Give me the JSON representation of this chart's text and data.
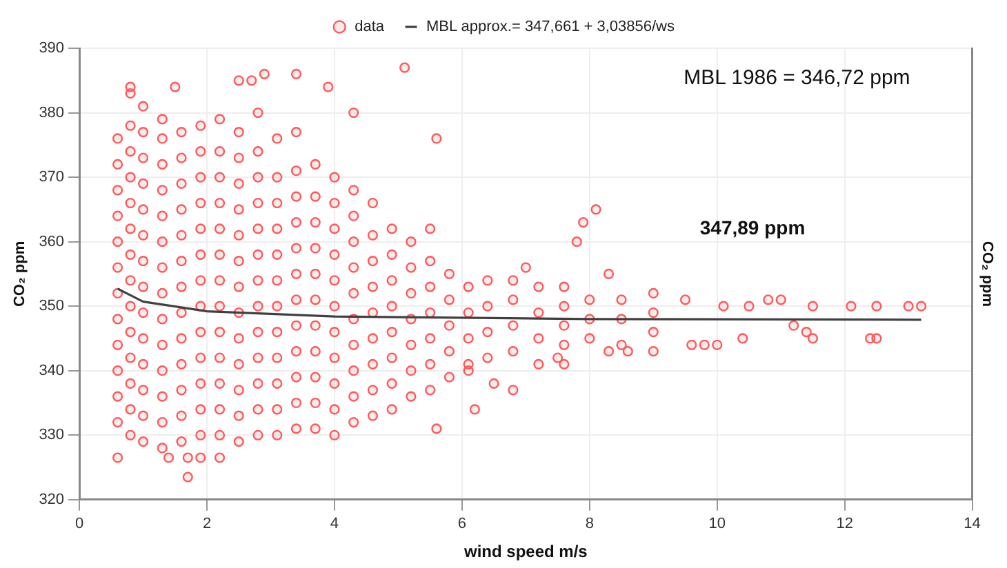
{
  "chart_data": {
    "type": "scatter",
    "xlabel": "wind speed m/s",
    "ylabel": "CO₂ ppm",
    "y2label": "CO₂ ppm",
    "xlim": [
      0,
      14
    ],
    "xticks": [
      0,
      2,
      4,
      6,
      8,
      10,
      12,
      14
    ],
    "ylim": [
      320,
      390
    ],
    "yticks": [
      320,
      330,
      340,
      350,
      360,
      370,
      380,
      390
    ],
    "grid": true,
    "legend": "top",
    "marker": "circle",
    "annotations": [
      "MBL 1986 = 346,72 ppm",
      "347,89 ppm"
    ],
    "series": [
      {
        "name": "data",
        "color": "#ff5a5a",
        "x": [
          0.6,
          0.6,
          0.6,
          0.6,
          0.6,
          0.6,
          0.6,
          0.6,
          0.6,
          0.6,
          0.6,
          0.6,
          0.8,
          0.8,
          0.8,
          0.8,
          0.8,
          0.8,
          0.8,
          0.8,
          0.8,
          0.8,
          0.8,
          0.8,
          0.8,
          0.8,
          1.0,
          1.0,
          1.0,
          1.0,
          1.0,
          1.0,
          1.0,
          1.0,
          1.0,
          1.0,
          1.0,
          1.0,
          1.0,
          1.0,
          1.3,
          1.3,
          1.3,
          1.3,
          1.3,
          1.3,
          1.3,
          1.3,
          1.3,
          1.3,
          1.3,
          1.3,
          1.3,
          1.3,
          1.6,
          1.6,
          1.6,
          1.6,
          1.6,
          1.6,
          1.6,
          1.6,
          1.6,
          1.6,
          1.6,
          1.6,
          1.6,
          1.9,
          1.9,
          1.9,
          1.9,
          1.9,
          1.9,
          1.9,
          1.9,
          1.9,
          1.9,
          1.9,
          1.9,
          1.9,
          2.2,
          2.2,
          2.2,
          2.2,
          2.2,
          2.2,
          2.2,
          2.2,
          2.2,
          2.2,
          2.2,
          2.2,
          2.2,
          2.5,
          2.5,
          2.5,
          2.5,
          2.5,
          2.5,
          2.5,
          2.5,
          2.5,
          2.5,
          2.5,
          2.5,
          2.5,
          2.8,
          2.8,
          2.8,
          2.8,
          2.8,
          2.8,
          2.8,
          2.8,
          2.8,
          2.8,
          2.8,
          2.8,
          2.8,
          3.1,
          3.1,
          3.1,
          3.1,
          3.1,
          3.1,
          3.1,
          3.1,
          3.1,
          3.1,
          3.1,
          3.1,
          3.4,
          3.4,
          3.4,
          3.4,
          3.4,
          3.4,
          3.4,
          3.4,
          3.4,
          3.4,
          3.4,
          3.4,
          3.7,
          3.7,
          3.7,
          3.7,
          3.7,
          3.7,
          3.7,
          3.7,
          3.7,
          3.7,
          3.7,
          4.0,
          4.0,
          4.0,
          4.0,
          4.0,
          4.0,
          4.0,
          4.0,
          4.0,
          4.0,
          4.0,
          4.3,
          4.3,
          4.3,
          4.3,
          4.3,
          4.3,
          4.3,
          4.3,
          4.3,
          4.3,
          4.6,
          4.6,
          4.6,
          4.6,
          4.6,
          4.6,
          4.6,
          4.6,
          4.6,
          4.9,
          4.9,
          4.9,
          4.9,
          4.9,
          4.9,
          4.9,
          4.9,
          5.2,
          5.2,
          5.2,
          5.2,
          5.2,
          5.2,
          5.2,
          5.5,
          5.5,
          5.5,
          5.5,
          5.5,
          5.5,
          5.5,
          5.8,
          5.8,
          5.8,
          5.8,
          5.8,
          6.1,
          6.1,
          6.1,
          6.1,
          6.4,
          6.4,
          6.4,
          6.4,
          6.8,
          6.8,
          6.8,
          6.8,
          7.2,
          7.2,
          7.2,
          7.2,
          7.6,
          7.6,
          7.6,
          7.6,
          8.0,
          8.0,
          8.0,
          8.5,
          8.5,
          8.5,
          9.0,
          9.0,
          9.0,
          1.7,
          0.6,
          1.4,
          1.7,
          1.9,
          2.2,
          5.1,
          3.4,
          2.9,
          0.8,
          1.5,
          2.5,
          2.7,
          3.9,
          4.3,
          5.6,
          13.2,
          13.0,
          12.5,
          12.1,
          11.5,
          11.0,
          10.8,
          10.5,
          10.1,
          9.5,
          12.5,
          12.4,
          11.5,
          11.4,
          11.2,
          10.4,
          10.0,
          9.8,
          9.6,
          9.0,
          8.6,
          8.3,
          7.6,
          7.8,
          8.1,
          7.9,
          7.5,
          6.5,
          6.2,
          5.6,
          6.8,
          6.1,
          7.0,
          8.3
        ],
        "values": [
          332,
          336,
          340,
          344,
          348,
          352,
          356,
          360,
          364,
          368,
          372,
          376,
          330,
          334,
          338,
          342,
          346,
          350,
          354,
          358,
          362,
          366,
          370,
          374,
          378,
          383,
          329,
          333,
          337,
          341,
          345,
          349,
          353,
          357,
          361,
          365,
          369,
          373,
          377,
          381,
          328,
          332,
          336,
          340,
          344,
          348,
          352,
          356,
          360,
          364,
          368,
          372,
          376,
          379,
          329,
          333,
          337,
          341,
          345,
          349,
          353,
          357,
          361,
          365,
          369,
          373,
          377,
          330,
          334,
          338,
          342,
          346,
          350,
          354,
          358,
          362,
          366,
          370,
          374,
          378,
          330,
          334,
          338,
          342,
          346,
          350,
          354,
          358,
          362,
          366,
          370,
          374,
          379,
          329,
          333,
          337,
          341,
          345,
          349,
          353,
          357,
          361,
          365,
          369,
          373,
          377,
          330,
          334,
          338,
          342,
          346,
          350,
          354,
          358,
          362,
          366,
          370,
          374,
          380,
          330,
          334,
          338,
          342,
          346,
          350,
          354,
          358,
          362,
          366,
          370,
          376,
          331,
          335,
          339,
          343,
          347,
          351,
          355,
          359,
          363,
          367,
          371,
          377,
          331,
          335,
          339,
          343,
          347,
          351,
          355,
          359,
          363,
          367,
          372,
          330,
          334,
          338,
          342,
          346,
          350,
          354,
          358,
          362,
          366,
          370,
          332,
          336,
          340,
          344,
          348,
          352,
          356,
          360,
          364,
          368,
          333,
          337,
          341,
          345,
          349,
          353,
          357,
          361,
          366,
          334,
          338,
          342,
          346,
          350,
          354,
          358,
          362,
          336,
          340,
          344,
          348,
          352,
          356,
          360,
          337,
          341,
          345,
          349,
          353,
          357,
          362,
          339,
          343,
          347,
          351,
          355,
          341,
          345,
          349,
          353,
          342,
          346,
          350,
          354,
          343,
          347,
          351,
          354,
          341,
          345,
          349,
          353,
          344,
          347,
          350,
          353,
          345,
          348,
          351,
          344,
          348,
          351,
          346,
          349,
          352,
          323.5,
          326.5,
          326.5,
          326.5,
          326.5,
          326.5,
          387,
          386,
          386,
          384,
          384,
          385,
          385,
          384,
          380,
          376,
          350,
          350,
          350,
          350,
          350,
          351,
          351,
          350,
          350,
          351,
          345,
          345,
          345,
          346,
          347,
          345,
          344,
          344,
          344,
          343,
          343,
          343,
          341,
          360,
          365,
          363,
          342,
          338,
          334,
          331,
          337,
          340,
          356,
          355
        ]
      },
      {
        "name": "MBL approx.= 347,661 + 3,03856/ws",
        "color": "#404040",
        "type": "line",
        "marker": "none",
        "x": [
          0.6,
          1,
          2,
          4,
          8,
          13.2
        ],
        "values": [
          352.7,
          350.7,
          349.2,
          348.4,
          348.0,
          347.9
        ]
      }
    ]
  }
}
